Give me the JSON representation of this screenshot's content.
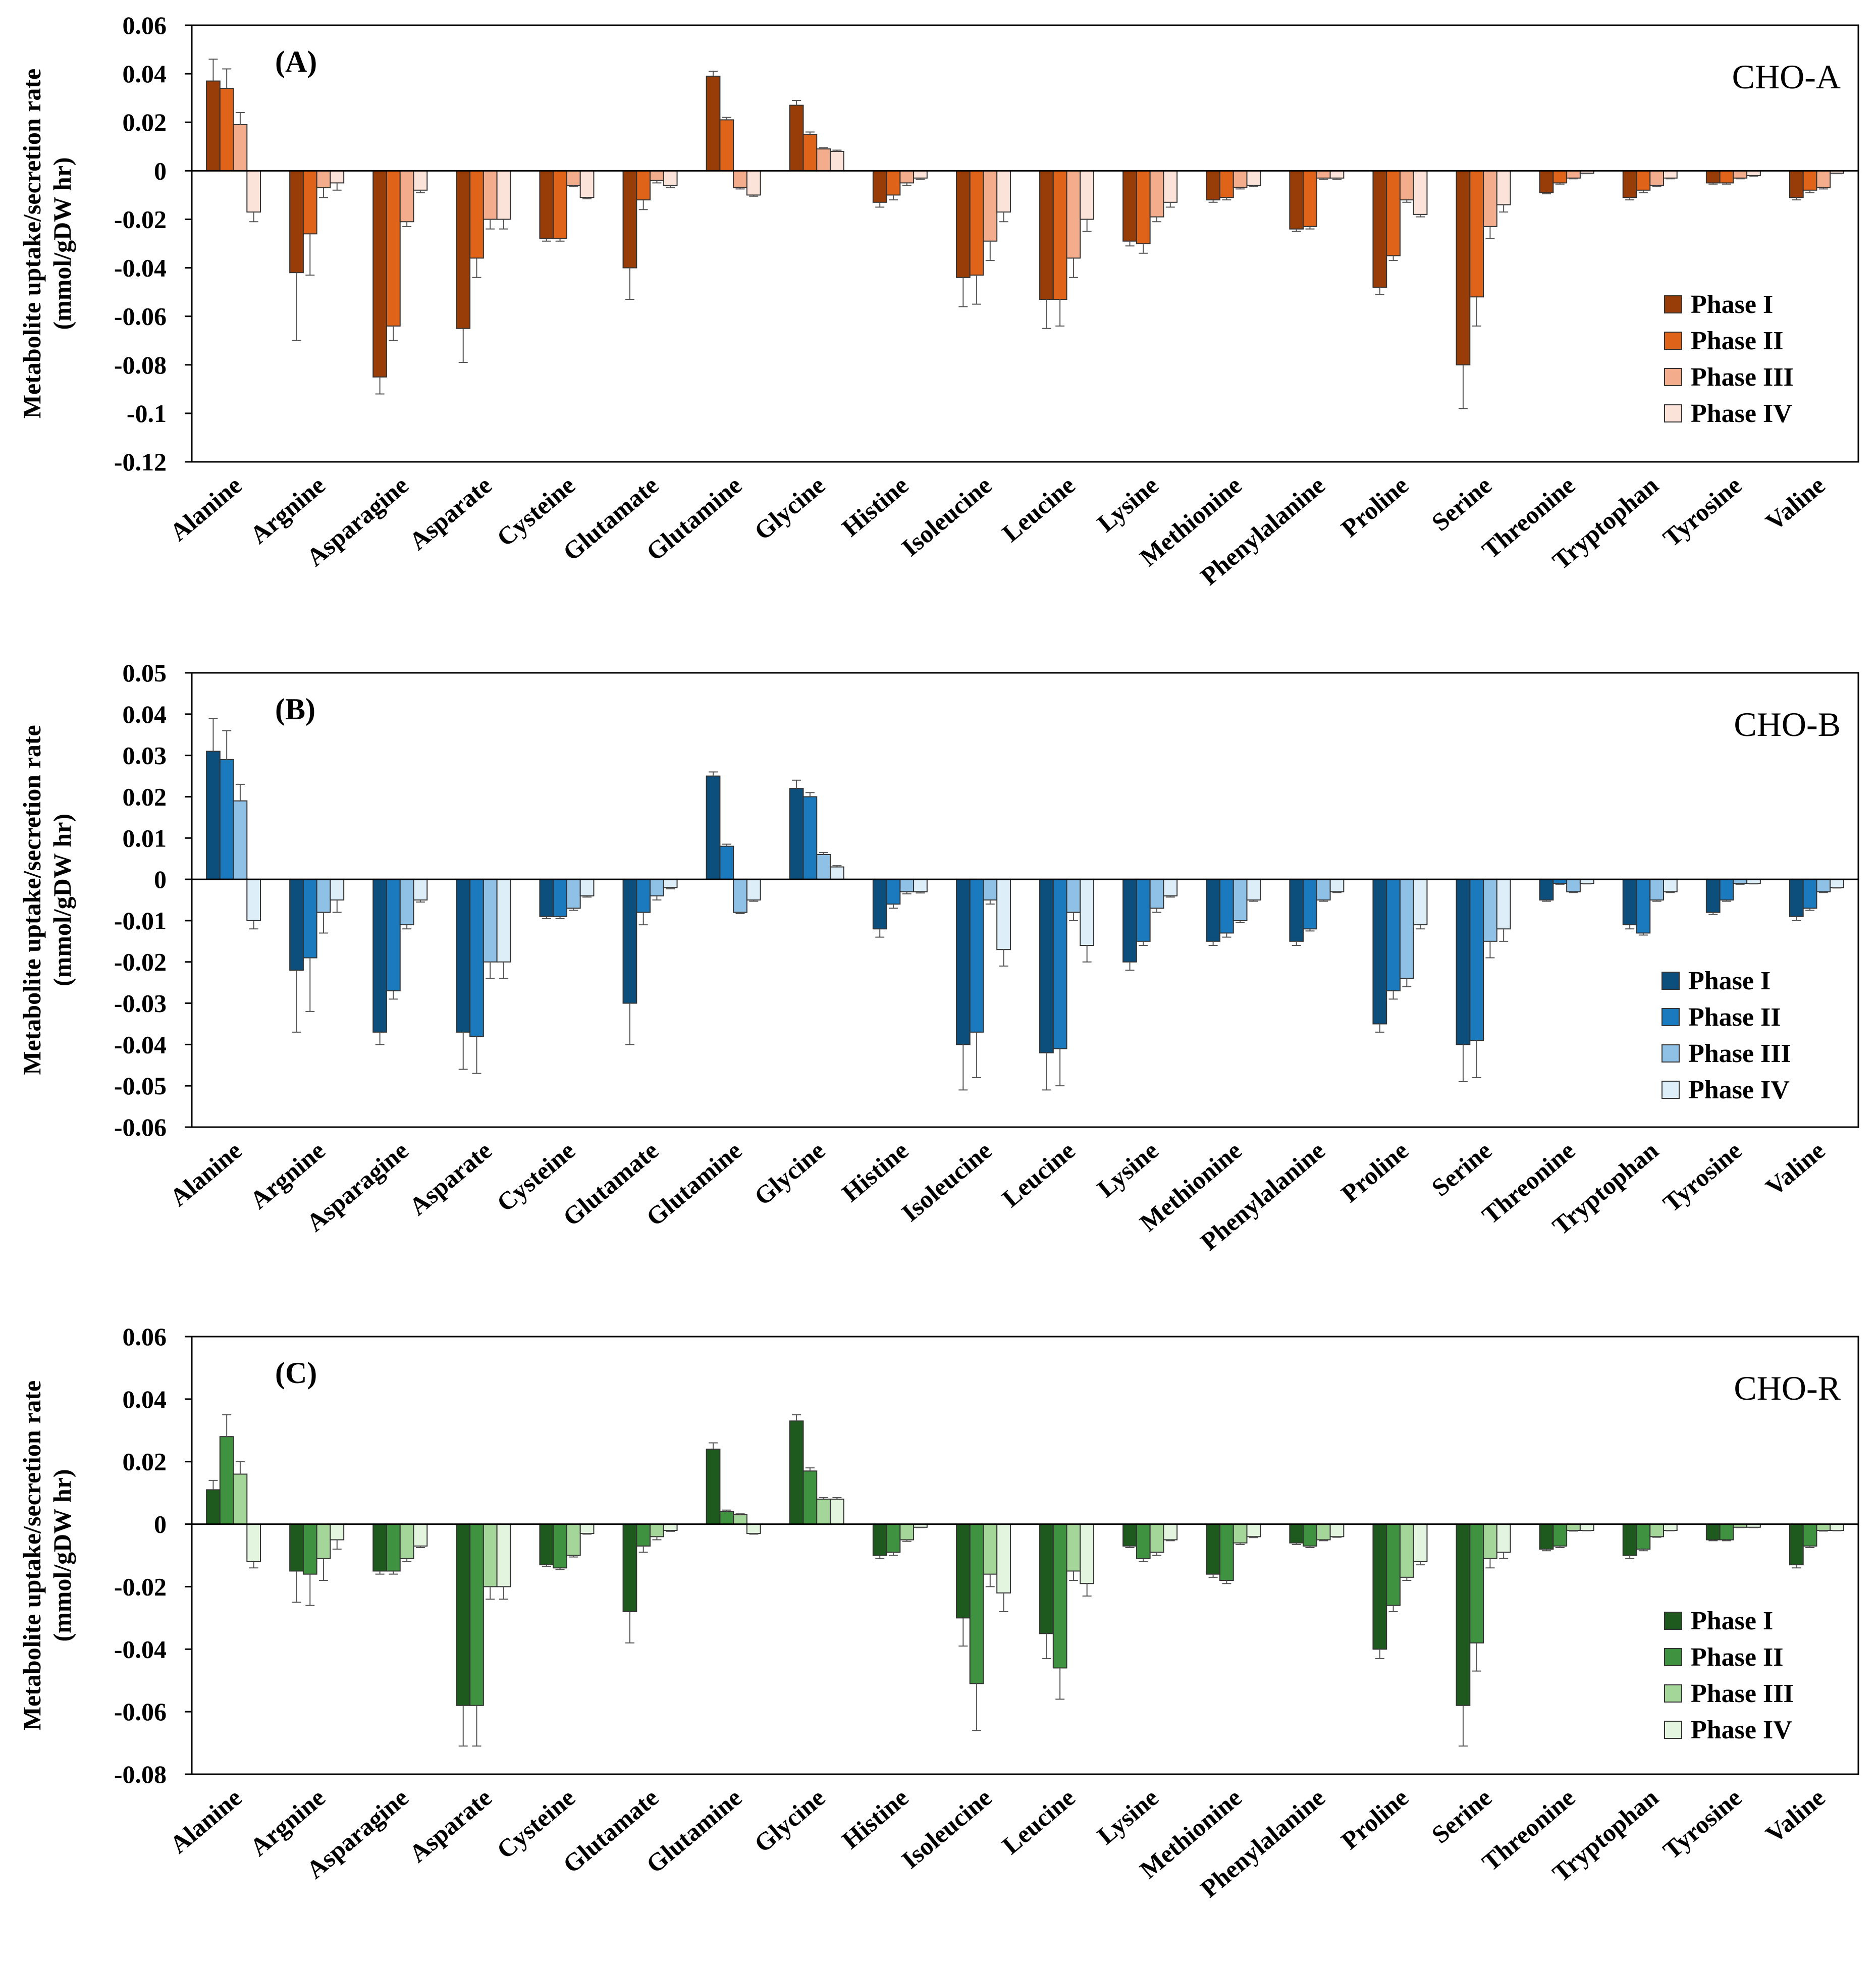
{
  "figure": {
    "ylabel_line1": "Metabolite uptake/secretion rate",
    "ylabel_line2": "(mmol/gDW hr)",
    "legend": [
      "Phase I",
      "Phase II",
      "Phase III",
      "Phase IV"
    ]
  },
  "chart_data": [
    {
      "type": "bar",
      "panel": "(A)",
      "title": "CHO-A",
      "ylim": [
        -0.12,
        0.06
      ],
      "yticks": [
        0.06,
        0.04,
        0.02,
        0,
        -0.02,
        -0.04,
        -0.06,
        -0.08,
        -0.1,
        -0.12
      ],
      "ytick_labels": [
        "0.06",
        "0.04",
        "0.02",
        "0",
        "-0.02",
        "-0.04",
        "-0.06",
        "-0.08",
        "-0.1",
        "-0.12"
      ],
      "legend_position": "right",
      "colors": [
        "#983c08",
        "#e0631a",
        "#f4ad8c",
        "#fbe3d9"
      ],
      "categories": [
        "Alanine",
        "Argnine",
        "Asparagine",
        "Asparate",
        "Cysteine",
        "Glutamate",
        "Glutamine",
        "Glycine",
        "Histine",
        "Isoleucine",
        "Leucine",
        "Lysine",
        "Methionine",
        "Phenylalanine",
        "Proline",
        "Serine",
        "Threonine",
        "Tryptophan",
        "Tyrosine",
        "Valine"
      ],
      "series": [
        {
          "name": "Phase I",
          "values": [
            0.037,
            -0.042,
            -0.085,
            -0.065,
            -0.028,
            -0.04,
            0.039,
            0.027,
            -0.013,
            -0.044,
            -0.053,
            -0.029,
            -0.012,
            -0.024,
            -0.048,
            -0.08,
            -0.009,
            -0.011,
            -0.005,
            -0.011
          ],
          "errors": [
            0.009,
            0.028,
            0.007,
            0.014,
            0.001,
            0.013,
            0.002,
            0.002,
            0.002,
            0.012,
            0.012,
            0.002,
            0.001,
            0.001,
            0.003,
            0.018,
            0.0005,
            0.001,
            0.0005,
            0.001
          ]
        },
        {
          "name": "Phase II",
          "values": [
            0.034,
            -0.026,
            -0.064,
            -0.036,
            -0.028,
            -0.012,
            0.021,
            0.015,
            -0.01,
            -0.043,
            -0.053,
            -0.03,
            -0.011,
            -0.023,
            -0.035,
            -0.052,
            -0.005,
            -0.008,
            -0.005,
            -0.008
          ],
          "errors": [
            0.008,
            0.017,
            0.006,
            0.008,
            0.001,
            0.004,
            0.001,
            0.001,
            0.002,
            0.012,
            0.011,
            0.004,
            0.001,
            0.001,
            0.002,
            0.012,
            0.0005,
            0.001,
            0.0005,
            0.001
          ]
        },
        {
          "name": "Phase III",
          "values": [
            0.019,
            -0.007,
            -0.021,
            -0.02,
            -0.006,
            -0.004,
            -0.007,
            0.009,
            -0.005,
            -0.029,
            -0.036,
            -0.019,
            -0.007,
            -0.003,
            -0.012,
            -0.023,
            -0.003,
            -0.006,
            -0.003,
            -0.007
          ],
          "errors": [
            0.005,
            0.004,
            0.002,
            0.004,
            0.0005,
            0.001,
            0.0005,
            0.0005,
            0.001,
            0.008,
            0.008,
            0.002,
            0.0005,
            0.0005,
            0.001,
            0.005,
            0.0003,
            0.0005,
            0.0003,
            0.0005
          ]
        },
        {
          "name": "Phase IV",
          "values": [
            -0.017,
            -0.005,
            -0.008,
            -0.02,
            -0.011,
            -0.006,
            -0.01,
            0.008,
            -0.003,
            -0.017,
            -0.02,
            -0.013,
            -0.006,
            -0.003,
            -0.018,
            -0.014,
            -0.001,
            -0.003,
            -0.002,
            -0.001
          ],
          "errors": [
            0.004,
            0.003,
            0.001,
            0.004,
            0.0005,
            0.001,
            0.0005,
            0.0005,
            0.0005,
            0.004,
            0.005,
            0.002,
            0.0005,
            0.0005,
            0.001,
            0.003,
            0.0002,
            0.0003,
            0.0002,
            0.0002
          ]
        }
      ]
    },
    {
      "type": "bar",
      "panel": "(B)",
      "title": "CHO-B",
      "ylim": [
        -0.06,
        0.05
      ],
      "yticks": [
        0.05,
        0.04,
        0.03,
        0.02,
        0.01,
        0,
        -0.01,
        -0.02,
        -0.03,
        -0.04,
        -0.05,
        -0.06
      ],
      "ytick_labels": [
        "0.05",
        "0.04",
        "0.03",
        "0.02",
        "0.01",
        "0",
        "-0.01",
        "-0.02",
        "-0.03",
        "-0.04",
        "-0.05",
        "-0.06"
      ],
      "legend_position": "right",
      "colors": [
        "#0d4f7c",
        "#1b79bd",
        "#8fc1e6",
        "#ddeef9"
      ],
      "categories": [
        "Alanine",
        "Argnine",
        "Asparagine",
        "Asparate",
        "Cysteine",
        "Glutamate",
        "Glutamine",
        "Glycine",
        "Histine",
        "Isoleucine",
        "Leucine",
        "Lysine",
        "Methionine",
        "Phenylalanine",
        "Proline",
        "Serine",
        "Threonine",
        "Tryptophan",
        "Tyrosine",
        "Valine"
      ],
      "series": [
        {
          "name": "Phase I",
          "values": [
            0.031,
            -0.022,
            -0.037,
            -0.037,
            -0.009,
            -0.03,
            0.025,
            0.022,
            -0.012,
            -0.04,
            -0.042,
            -0.02,
            -0.015,
            -0.015,
            -0.035,
            -0.04,
            -0.005,
            -0.011,
            -0.008,
            -0.009
          ],
          "errors": [
            0.008,
            0.015,
            0.003,
            0.009,
            0.0005,
            0.01,
            0.001,
            0.002,
            0.002,
            0.011,
            0.009,
            0.002,
            0.001,
            0.001,
            0.002,
            0.009,
            0.0003,
            0.001,
            0.0005,
            0.001
          ]
        },
        {
          "name": "Phase II",
          "values": [
            0.029,
            -0.019,
            -0.027,
            -0.038,
            -0.009,
            -0.008,
            0.008,
            0.02,
            -0.006,
            -0.037,
            -0.041,
            -0.015,
            -0.013,
            -0.012,
            -0.027,
            -0.039,
            -0.001,
            -0.013,
            -0.005,
            -0.007
          ],
          "errors": [
            0.007,
            0.013,
            0.002,
            0.009,
            0.0005,
            0.003,
            0.0005,
            0.001,
            0.001,
            0.011,
            0.009,
            0.001,
            0.001,
            0.0005,
            0.002,
            0.009,
            0.0002,
            0.0005,
            0.0003,
            0.0005
          ]
        },
        {
          "name": "Phase III",
          "values": [
            0.019,
            -0.008,
            -0.011,
            -0.02,
            -0.007,
            -0.004,
            -0.008,
            0.006,
            -0.003,
            -0.005,
            -0.008,
            -0.007,
            -0.01,
            -0.005,
            -0.024,
            -0.015,
            -0.003,
            -0.005,
            -0.001,
            -0.003
          ],
          "errors": [
            0.004,
            0.005,
            0.001,
            0.004,
            0.0005,
            0.001,
            0.0003,
            0.0005,
            0.0005,
            0.001,
            0.002,
            0.001,
            0.0005,
            0.0003,
            0.002,
            0.004,
            0.0002,
            0.0003,
            0.0002,
            0.0002
          ]
        },
        {
          "name": "Phase IV",
          "values": [
            -0.01,
            -0.005,
            -0.005,
            -0.02,
            -0.004,
            -0.002,
            -0.005,
            0.003,
            -0.003,
            -0.017,
            -0.016,
            -0.004,
            -0.005,
            -0.003,
            -0.011,
            -0.012,
            -0.001,
            -0.003,
            -0.001,
            -0.002
          ],
          "errors": [
            0.002,
            0.003,
            0.0005,
            0.004,
            0.0003,
            0.0003,
            0.0003,
            0.0003,
            0.0003,
            0.004,
            0.004,
            0.0003,
            0.0003,
            0.0002,
            0.001,
            0.003,
            0.0001,
            0.0002,
            0.0001,
            0.0001
          ]
        }
      ]
    },
    {
      "type": "bar",
      "panel": "(C)",
      "title": "CHO-R",
      "ylim": [
        -0.08,
        0.06
      ],
      "yticks": [
        0.06,
        0.04,
        0.02,
        0,
        -0.02,
        -0.04,
        -0.06,
        -0.08
      ],
      "ytick_labels": [
        "0.06",
        "0.04",
        "0.02",
        "0",
        "-0.02",
        "-0.04",
        "-0.06",
        "-0.08"
      ],
      "legend_position": "right",
      "colors": [
        "#1e5a1e",
        "#3f923f",
        "#a4d69a",
        "#e3f4df"
      ],
      "categories": [
        "Alanine",
        "Argnine",
        "Asparagine",
        "Asparate",
        "Cysteine",
        "Glutamate",
        "Glutamine",
        "Glycine",
        "Histine",
        "Isoleucine",
        "Leucine",
        "Lysine",
        "Methionine",
        "Phenylalanine",
        "Proline",
        "Serine",
        "Threonine",
        "Tryptophan",
        "Tyrosine",
        "Valine"
      ],
      "series": [
        {
          "name": "Phase I",
          "values": [
            0.011,
            -0.015,
            -0.015,
            -0.058,
            -0.013,
            -0.028,
            0.024,
            0.033,
            -0.01,
            -0.03,
            -0.035,
            -0.007,
            -0.016,
            -0.006,
            -0.04,
            -0.058,
            -0.008,
            -0.01,
            -0.005,
            -0.013
          ],
          "errors": [
            0.003,
            0.01,
            0.001,
            0.013,
            0.0005,
            0.01,
            0.002,
            0.002,
            0.001,
            0.009,
            0.008,
            0.0005,
            0.001,
            0.0005,
            0.003,
            0.013,
            0.0005,
            0.001,
            0.0003,
            0.001
          ]
        },
        {
          "name": "Phase II",
          "values": [
            0.028,
            -0.016,
            -0.015,
            -0.058,
            -0.014,
            -0.007,
            0.004,
            0.017,
            -0.009,
            -0.051,
            -0.046,
            -0.011,
            -0.018,
            -0.007,
            -0.026,
            -0.038,
            -0.007,
            -0.008,
            -0.005,
            -0.007
          ],
          "errors": [
            0.007,
            0.01,
            0.001,
            0.013,
            0.0005,
            0.002,
            0.0005,
            0.001,
            0.001,
            0.015,
            0.01,
            0.001,
            0.001,
            0.0005,
            0.002,
            0.009,
            0.0005,
            0.0005,
            0.0003,
            0.0005
          ]
        },
        {
          "name": "Phase III",
          "values": [
            0.016,
            -0.011,
            -0.011,
            -0.02,
            -0.01,
            -0.004,
            0.003,
            0.008,
            -0.005,
            -0.016,
            -0.015,
            -0.009,
            -0.006,
            -0.005,
            -0.017,
            -0.011,
            -0.002,
            -0.004,
            -0.001,
            -0.002
          ],
          "errors": [
            0.004,
            0.007,
            0.001,
            0.004,
            0.0005,
            0.001,
            0.0003,
            0.0005,
            0.0005,
            0.004,
            0.003,
            0.001,
            0.0005,
            0.0003,
            0.001,
            0.003,
            0.0002,
            0.0002,
            0.0001,
            0.0002
          ]
        },
        {
          "name": "Phase IV",
          "values": [
            -0.012,
            -0.005,
            -0.007,
            -0.02,
            -0.003,
            -0.002,
            -0.003,
            0.008,
            -0.001,
            -0.022,
            -0.019,
            -0.005,
            -0.004,
            -0.004,
            -0.012,
            -0.009,
            -0.002,
            -0.002,
            -0.001,
            -0.002
          ],
          "errors": [
            0.002,
            0.003,
            0.0005,
            0.004,
            0.0002,
            0.0003,
            0.0002,
            0.0005,
            0.0001,
            0.006,
            0.004,
            0.0003,
            0.0003,
            0.0002,
            0.001,
            0.002,
            0.0001,
            0.0001,
            0.0001,
            0.0001
          ]
        }
      ]
    }
  ]
}
